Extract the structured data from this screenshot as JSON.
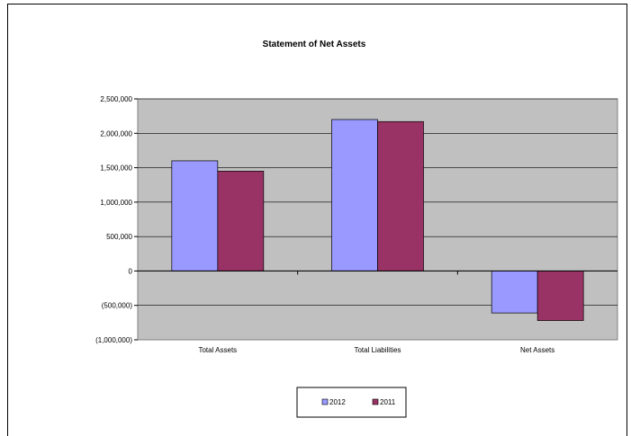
{
  "chart_data": {
    "type": "bar",
    "title": "Statement of Net Assets",
    "xlabel": "",
    "ylabel": "",
    "categories": [
      "Total Assets",
      "Total Liabilities",
      "Net Assets"
    ],
    "series": [
      {
        "name": "2012",
        "color": "#9999ff",
        "values": [
          1600000,
          2200000,
          -610000
        ]
      },
      {
        "name": "2011",
        "color": "#993366",
        "values": [
          1450000,
          2170000,
          -720000
        ]
      }
    ],
    "ylim": [
      -1000000,
      2500000
    ],
    "yticks": [
      2500000,
      2000000,
      1500000,
      1000000,
      500000,
      0,
      -500000,
      -1000000
    ],
    "ytick_labels": [
      "2,500,000",
      "2,000,000",
      "1,500,000",
      "1,000,000",
      "500,000",
      "0",
      "(500,000)",
      "(1,000,000)"
    ],
    "grid": true,
    "plot_background": "#c0c0c0",
    "legend_position": "bottom"
  }
}
